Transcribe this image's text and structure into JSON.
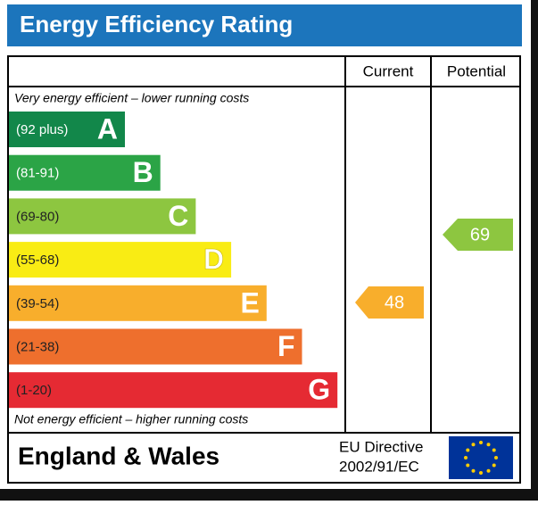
{
  "header": {
    "title": "Energy Efficiency Rating"
  },
  "columns": [
    "Current",
    "Potential"
  ],
  "top_note": "Very energy efficient – lower running costs",
  "bands": [
    {
      "range": "(92 plus)",
      "letter": "A",
      "color": "#12874a"
    },
    {
      "range": "(81-91)",
      "letter": "B",
      "color": "#2ba446"
    },
    {
      "range": "(69-80)",
      "letter": "C",
      "color": "#8dc640"
    },
    {
      "range": "(55-68)",
      "letter": "D",
      "color": "#f9ec14"
    },
    {
      "range": "(39-54)",
      "letter": "E",
      "color": "#f8ae2c"
    },
    {
      "range": "(21-38)",
      "letter": "F",
      "color": "#ee6f2d"
    },
    {
      "range": "(1-20)",
      "letter": "G",
      "color": "#e52a33"
    }
  ],
  "bottom_note": "Not energy efficient – higher running costs",
  "current": {
    "value": 48,
    "color": "#f8ae2c"
  },
  "potential": {
    "value": 69,
    "color": "#8dc640"
  },
  "footer": {
    "region": "England & Wales",
    "directive": [
      "EU Directive",
      "2002/91/EC"
    ]
  }
}
